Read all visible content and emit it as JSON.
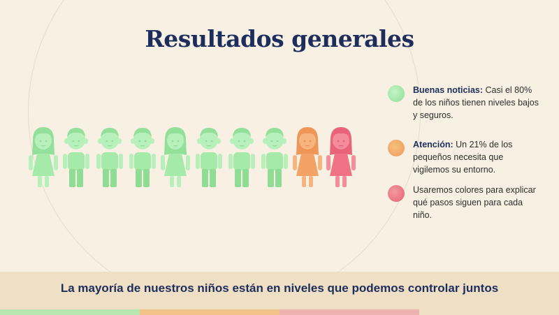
{
  "title": "Resultados generales",
  "colors": {
    "green": "#9fe8a5",
    "orange": "#f0a060",
    "red": "#ec6f80",
    "navy": "#1e2e5c"
  },
  "children": [
    {
      "gender": "girl",
      "status": "green"
    },
    {
      "gender": "boy",
      "status": "green"
    },
    {
      "gender": "boy",
      "status": "green"
    },
    {
      "gender": "boy",
      "status": "green"
    },
    {
      "gender": "girl",
      "status": "green"
    },
    {
      "gender": "boy",
      "status": "green"
    },
    {
      "gender": "boy",
      "status": "green"
    },
    {
      "gender": "boy",
      "status": "green"
    },
    {
      "gender": "girl",
      "status": "orange"
    },
    {
      "gender": "girl",
      "status": "red"
    }
  ],
  "legend": [
    {
      "color": "green",
      "bold": "Buenas noticias:",
      "text": " Casi el 80% de los niños tienen niveles bajos y seguros."
    },
    {
      "color": "orange",
      "bold": "Atención:",
      "text": " Un 21% de los pequeños necesita que vigilemos su entorno."
    },
    {
      "color": "red",
      "bold": "",
      "text": "Usaremos colores para explicar qué pasos siguen para cada niño."
    }
  ],
  "footer": "La mayoría de nuestros niños están en niveles que podemos controlar juntos"
}
